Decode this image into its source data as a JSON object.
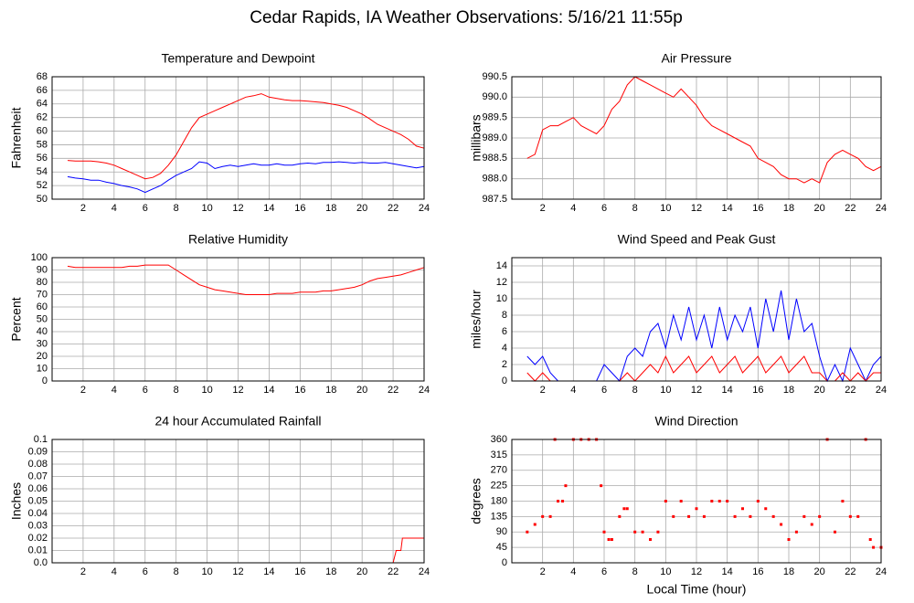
{
  "title": "Cedar Rapids, IA Weather Observations: 5/16/21 11:55p",
  "chart_data": [
    {
      "type": "line",
      "title": "Temperature and Dewpoint",
      "ylabel": "Fahrenheit",
      "x": [
        1,
        1.5,
        2,
        2.5,
        3,
        3.5,
        4,
        4.5,
        5,
        5.5,
        6,
        6.5,
        7,
        7.5,
        8,
        8.5,
        9,
        9.5,
        10,
        10.5,
        11,
        11.5,
        12,
        12.5,
        13,
        13.5,
        14,
        14.5,
        15,
        15.5,
        16,
        16.5,
        17,
        17.5,
        18,
        18.5,
        19,
        19.5,
        20,
        20.5,
        21,
        21.5,
        22,
        22.5,
        23,
        23.5,
        24
      ],
      "series": [
        {
          "color": "#ff0000",
          "values": [
            55.7,
            55.6,
            55.6,
            55.6,
            55.5,
            55.3,
            55.0,
            54.5,
            54.0,
            53.5,
            53.0,
            53.2,
            53.8,
            55.0,
            56.5,
            58.5,
            60.5,
            62.0,
            62.5,
            63.0,
            63.5,
            64.0,
            64.5,
            65.0,
            65.2,
            65.5,
            65.0,
            64.8,
            64.6,
            64.5,
            64.5,
            64.4,
            64.3,
            64.2,
            64.0,
            63.8,
            63.5,
            63.0,
            62.5,
            61.8,
            61.0,
            60.5,
            60.0,
            59.5,
            58.8,
            57.8,
            57.5
          ]
        },
        {
          "color": "#0000ff",
          "values": [
            53.3,
            53.1,
            53.0,
            52.8,
            52.8,
            52.5,
            52.3,
            52.0,
            51.8,
            51.5,
            51.0,
            51.5,
            52.0,
            52.8,
            53.5,
            54.0,
            54.5,
            55.5,
            55.3,
            54.5,
            54.8,
            55.0,
            54.8,
            55.0,
            55.2,
            55.0,
            55.0,
            55.2,
            55.0,
            55.0,
            55.2,
            55.3,
            55.2,
            55.4,
            55.4,
            55.5,
            55.4,
            55.3,
            55.4,
            55.3,
            55.3,
            55.4,
            55.2,
            55.0,
            54.8,
            54.6,
            54.8
          ]
        }
      ],
      "xlim": [
        0,
        24
      ],
      "xticks": [
        2,
        4,
        6,
        8,
        10,
        12,
        14,
        16,
        18,
        20,
        22,
        24
      ],
      "ylim": [
        50,
        68
      ],
      "yticks": [
        50,
        52,
        54,
        56,
        58,
        60,
        62,
        64,
        66,
        68
      ],
      "grid": true
    },
    {
      "type": "line",
      "title": "Air Pressure",
      "ylabel": "millibars",
      "x": [
        1,
        1.5,
        2,
        2.5,
        3,
        3.5,
        4,
        4.5,
        5,
        5.5,
        6,
        6.5,
        7,
        7.5,
        8,
        8.5,
        9,
        9.5,
        10,
        10.5,
        11,
        11.5,
        12,
        12.5,
        13,
        13.5,
        14,
        14.5,
        15,
        15.5,
        16,
        16.5,
        17,
        17.5,
        18,
        18.5,
        19,
        19.5,
        20,
        20.5,
        21,
        21.5,
        22,
        22.5,
        23,
        23.5,
        24
      ],
      "series": [
        {
          "color": "#ff0000",
          "values": [
            988.5,
            988.6,
            989.2,
            989.3,
            989.3,
            989.4,
            989.5,
            989.3,
            989.2,
            989.1,
            989.3,
            989.7,
            989.9,
            990.3,
            990.5,
            990.4,
            990.3,
            990.2,
            990.1,
            990.0,
            990.2,
            990.0,
            989.8,
            989.5,
            989.3,
            989.2,
            989.1,
            989.0,
            988.9,
            988.8,
            988.5,
            988.4,
            988.3,
            988.1,
            988.0,
            988.0,
            987.9,
            988.0,
            987.9,
            988.4,
            988.6,
            988.7,
            988.6,
            988.5,
            988.3,
            988.2,
            988.3
          ]
        }
      ],
      "xlim": [
        0,
        24
      ],
      "xticks": [
        2,
        4,
        6,
        8,
        10,
        12,
        14,
        16,
        18,
        20,
        22,
        24
      ],
      "ylim": [
        987.5,
        990.5
      ],
      "yticks": [
        987.5,
        {
          "value": 988,
          "label": "988.0"
        },
        988.5,
        {
          "value": 989,
          "label": "989.0"
        },
        989.5,
        {
          "value": 990,
          "label": "990.0"
        },
        990.5
      ],
      "grid": true
    },
    {
      "type": "line",
      "title": "Relative Humidity",
      "ylabel": "Percent",
      "x": [
        1,
        1.5,
        2,
        2.5,
        3,
        3.5,
        4,
        4.5,
        5,
        5.5,
        6,
        6.5,
        7,
        7.5,
        8,
        8.5,
        9,
        9.5,
        10,
        10.5,
        11,
        11.5,
        12,
        12.5,
        13,
        13.5,
        14,
        14.5,
        15,
        15.5,
        16,
        16.5,
        17,
        17.5,
        18,
        18.5,
        19,
        19.5,
        20,
        20.5,
        21,
        21.5,
        22,
        22.5,
        23,
        23.5,
        24
      ],
      "series": [
        {
          "color": "#ff0000",
          "values": [
            93,
            92,
            92,
            92,
            92,
            92,
            92,
            92,
            93,
            93,
            94,
            94,
            94,
            94,
            90,
            86,
            82,
            78,
            76,
            74,
            73,
            72,
            71,
            70,
            70,
            70,
            70,
            71,
            71,
            71,
            72,
            72,
            72,
            73,
            73,
            74,
            75,
            76,
            78,
            81,
            83,
            84,
            85,
            86,
            88,
            90,
            92
          ]
        }
      ],
      "xlim": [
        0,
        24
      ],
      "xticks": [
        2,
        4,
        6,
        8,
        10,
        12,
        14,
        16,
        18,
        20,
        22,
        24
      ],
      "ylim": [
        0,
        100
      ],
      "yticks": [
        0,
        10,
        20,
        30,
        40,
        50,
        60,
        70,
        80,
        90,
        100
      ],
      "grid": true
    },
    {
      "type": "line",
      "title": "Wind Speed and Peak Gust",
      "ylabel": "miles/hour",
      "x": [
        1,
        1.5,
        2,
        2.5,
        3,
        3.5,
        4,
        4.5,
        5,
        5.5,
        6,
        6.5,
        7,
        7.5,
        8,
        8.5,
        9,
        9.5,
        10,
        10.5,
        11,
        11.5,
        12,
        12.5,
        13,
        13.5,
        14,
        14.5,
        15,
        15.5,
        16,
        16.5,
        17,
        17.5,
        18,
        18.5,
        19,
        19.5,
        20,
        20.5,
        21,
        21.5,
        22,
        22.5,
        23,
        23.5,
        24
      ],
      "series": [
        {
          "color": "#0000ff",
          "values": [
            3,
            2,
            3,
            1,
            0,
            0,
            0,
            0,
            0,
            0,
            2,
            1,
            0,
            3,
            4,
            3,
            6,
            7,
            4,
            8,
            5,
            9,
            5,
            8,
            4,
            9,
            5,
            8,
            6,
            9,
            4,
            10,
            6,
            11,
            5,
            10,
            6,
            7,
            3,
            0,
            2,
            0,
            4,
            2,
            0,
            2,
            3
          ]
        },
        {
          "color": "#ff0000",
          "values": [
            1,
            0,
            1,
            0,
            0,
            0,
            0,
            0,
            0,
            0,
            0,
            0,
            0,
            1,
            0,
            1,
            2,
            1,
            3,
            1,
            2,
            3,
            1,
            2,
            3,
            1,
            2,
            3,
            1,
            2,
            3,
            1,
            2,
            3,
            1,
            2,
            3,
            1,
            1,
            0,
            0,
            1,
            0,
            1,
            0,
            1,
            1
          ]
        }
      ],
      "xlim": [
        0,
        24
      ],
      "xticks": [
        2,
        4,
        6,
        8,
        10,
        12,
        14,
        16,
        18,
        20,
        22,
        24
      ],
      "ylim": [
        0,
        15
      ],
      "yticks": [
        0,
        2,
        4,
        6,
        8,
        10,
        12,
        14
      ],
      "grid": true
    },
    {
      "type": "line",
      "title": "24 hour Accumulated Rainfall",
      "ylabel": "Inches",
      "x": [
        1,
        22,
        22.2,
        22.5,
        22.6,
        24
      ],
      "series": [
        {
          "color": "#ff0000",
          "values": [
            0,
            0,
            0.01,
            0.01,
            0.02,
            0.02
          ]
        }
      ],
      "xlim": [
        0,
        24
      ],
      "xticks": [
        2,
        4,
        6,
        8,
        10,
        12,
        14,
        16,
        18,
        20,
        22,
        24
      ],
      "ylim": [
        0,
        0.1
      ],
      "yticks": [
        {
          "value": 0,
          "label": "0.0"
        },
        0.01,
        0.02,
        0.03,
        0.04,
        0.05,
        0.06,
        0.07,
        0.08,
        0.09,
        0.1
      ],
      "grid": true
    },
    {
      "type": "scatter",
      "title": "Wind Direction",
      "ylabel": "degrees",
      "xlabel": "Local Time (hour)",
      "x": [
        1,
        1.5,
        2,
        2.5,
        2.8,
        3,
        3.3,
        3.5,
        4,
        4.5,
        5,
        5.5,
        5.8,
        6,
        6.3,
        6.5,
        7,
        7.3,
        7.5,
        8,
        8.5,
        9,
        9.5,
        10,
        10.5,
        11,
        11.5,
        12,
        12.5,
        13,
        13.5,
        14,
        14.5,
        15,
        15.5,
        16,
        16.5,
        17,
        17.5,
        18,
        18.5,
        19,
        19.5,
        20,
        20.5,
        21,
        21.5,
        22,
        22.5,
        23,
        23.3,
        23.5,
        24
      ],
      "series": [
        {
          "color": "#ff0000",
          "values": [
            90,
            112,
            135,
            135,
            360,
            180,
            180,
            225,
            360,
            360,
            360,
            360,
            225,
            90,
            68,
            68,
            135,
            158,
            158,
            90,
            90,
            68,
            90,
            180,
            135,
            180,
            135,
            158,
            135,
            180,
            180,
            180,
            135,
            158,
            135,
            180,
            158,
            135,
            112,
            68,
            90,
            135,
            112,
            135,
            360,
            90,
            180,
            135,
            135,
            360,
            68,
            45,
            45
          ]
        }
      ],
      "xlim": [
        0,
        24
      ],
      "xticks": [
        2,
        4,
        6,
        8,
        10,
        12,
        14,
        16,
        18,
        20,
        22,
        24
      ],
      "ylim": [
        0,
        360
      ],
      "yticks": [
        0,
        45,
        90,
        135,
        180,
        225,
        270,
        315,
        360
      ],
      "grid": true
    }
  ]
}
